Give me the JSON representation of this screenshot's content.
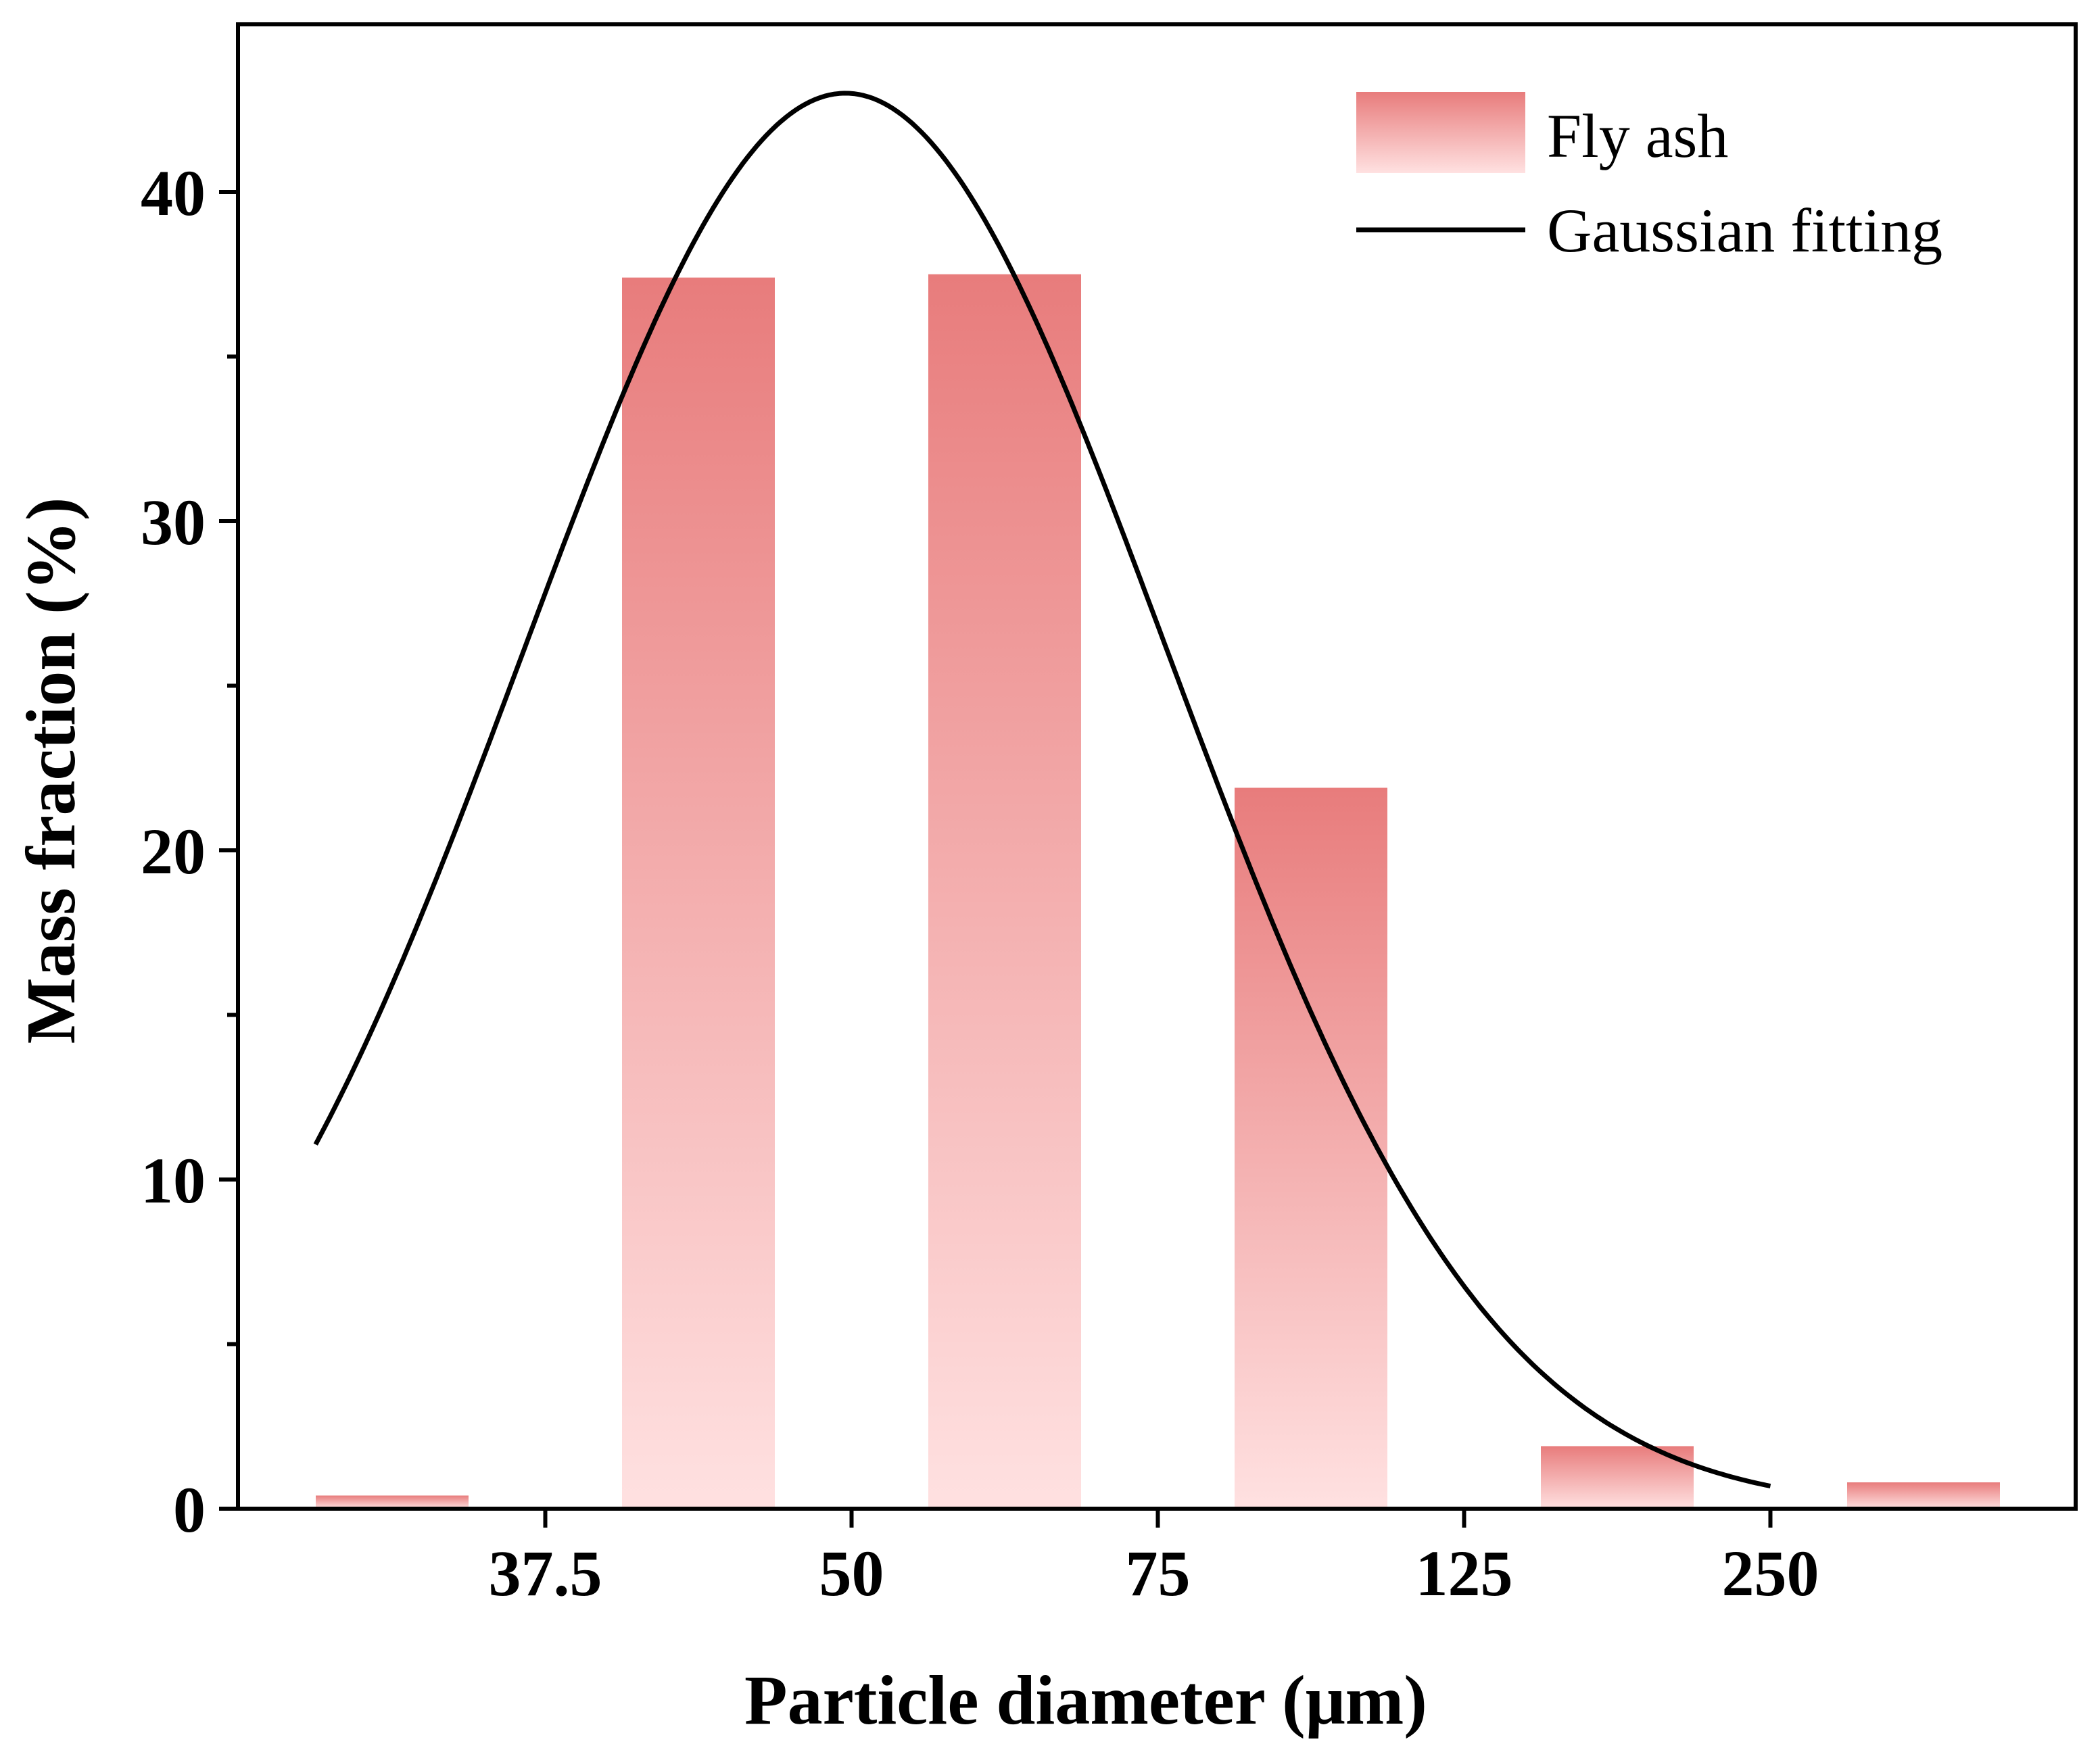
{
  "chart_data": {
    "type": "bar",
    "title": "",
    "xlabel": "Particle diameter (μm)",
    "ylabel": "Mass fraction (%)",
    "ylim": [
      0,
      45
    ],
    "yticks": [
      0,
      10,
      20,
      30,
      40
    ],
    "y_minor_ticks": [
      5,
      15,
      25,
      35
    ],
    "categories": [
      "<37.5",
      "37.5–50",
      "50–75",
      "75–125",
      "125–250",
      ">250"
    ],
    "boundary_labels": [
      "37.5",
      "50",
      "75",
      "125",
      "250"
    ],
    "series": [
      {
        "name": "Fly ash",
        "type": "bar",
        "values": [
          0.4,
          37.4,
          37.5,
          21.9,
          1.9,
          0.8
        ],
        "color_top": "#E87C7C",
        "color_bottom": "#FFE1E1"
      },
      {
        "name": "Gaussian fitting",
        "type": "line",
        "color": "#000000",
        "amplitude": 43.0,
        "center_index": 1.48,
        "sigma": 1.05,
        "x_start_index": -0.25,
        "x_end_index": 4.5
      }
    ],
    "grid": false,
    "legend_position": "top-right"
  }
}
